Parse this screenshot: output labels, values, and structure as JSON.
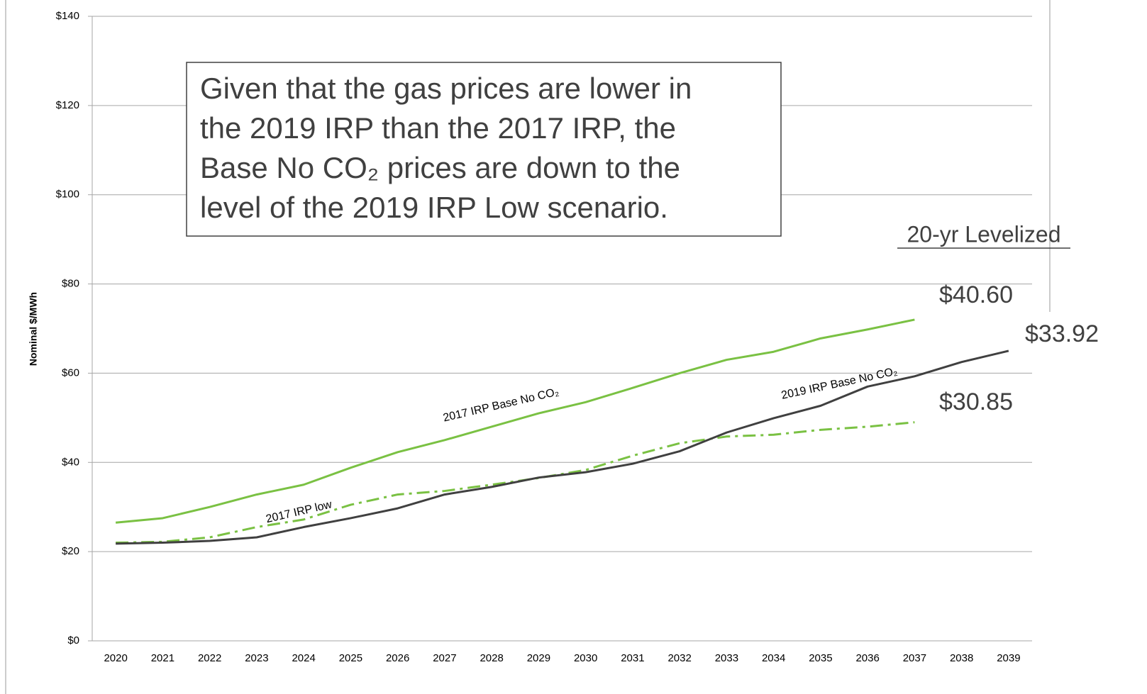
{
  "chart_data": {
    "type": "line",
    "y_label": "Nominal $/MWh",
    "categories": [
      "2020",
      "2021",
      "2022",
      "2023",
      "2024",
      "2025",
      "2026",
      "2027",
      "2028",
      "2029",
      "2030",
      "2031",
      "2032",
      "2033",
      "2034",
      "2035",
      "2036",
      "2037",
      "2038",
      "2039"
    ],
    "series": [
      {
        "name": "2017 IRP Base No CO₂",
        "color": "#7ac143",
        "style": "solid",
        "values": [
          26.5,
          27.5,
          30,
          32.8,
          35,
          38.8,
          42.3,
          45,
          48,
          51,
          53.5,
          56.7,
          60,
          63,
          64.8,
          67.8,
          69.8,
          72,
          null,
          null
        ]
      },
      {
        "name": "2017 IRP low",
        "color": "#7ac143",
        "style": "dashdot",
        "values": [
          22,
          22.2,
          23.2,
          25.5,
          27.2,
          30.5,
          32.8,
          33.6,
          35,
          36.5,
          38.3,
          41.5,
          44.3,
          45.8,
          46.2,
          47.3,
          48,
          49,
          null,
          null
        ]
      },
      {
        "name": "2019 IRP Base No CO₂",
        "color": "#404040",
        "style": "solid",
        "values": [
          21.8,
          22,
          22.4,
          23.2,
          25.5,
          27.5,
          29.7,
          32.8,
          34.5,
          36.6,
          37.8,
          39.7,
          42.5,
          46.7,
          49.9,
          52.7,
          57,
          59.3,
          62.5,
          65
        ]
      }
    ],
    "ylim": [
      0,
      140
    ],
    "yticks": [
      {
        "value": 0,
        "label": "$0"
      },
      {
        "value": 20,
        "label": "$20"
      },
      {
        "value": 40,
        "label": "$40"
      },
      {
        "value": 60,
        "label": "$60"
      },
      {
        "value": 80,
        "label": "$80"
      },
      {
        "value": 100,
        "label": "$100"
      },
      {
        "value": 120,
        "label": "$120"
      },
      {
        "value": 140,
        "label": "$140"
      }
    ],
    "grid": true,
    "annotation": [
      "Given that the gas prices are lower in",
      "the 2019 IRP than the 2017 IRP, the",
      "Base No CO₂ prices are down to the",
      "level of the 2019 IRP Low scenario."
    ],
    "levelized": {
      "title": "20-yr Levelized",
      "labels": [
        "$40.60",
        "$33.92",
        "$30.85"
      ]
    }
  }
}
